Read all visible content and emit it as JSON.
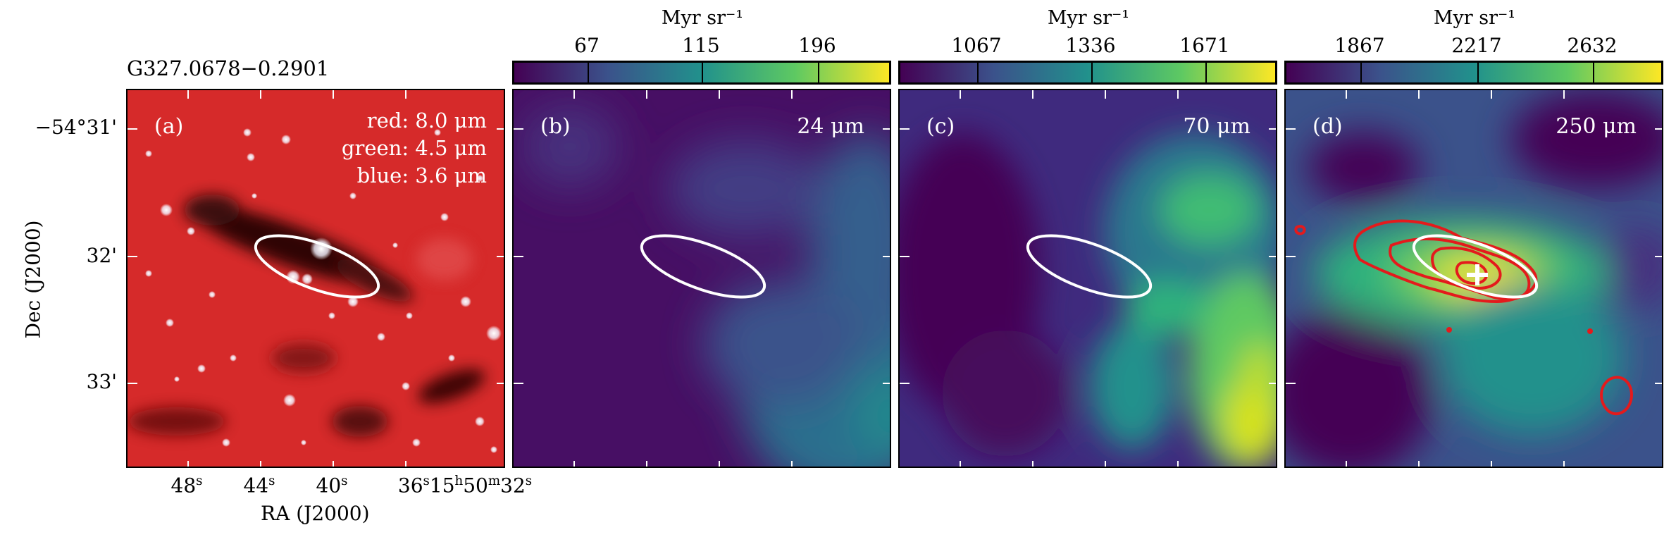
{
  "source_name": "G327.0678−0.2901",
  "axes": {
    "x_title": "RA (J2000)",
    "y_title": "Dec (J2000)",
    "dec_ticks": [
      "−54°31'",
      "32'",
      "33'"
    ],
    "ra_ticks": [
      "48",
      "44",
      "40",
      "36"
    ],
    "ra_tick_unit": "s",
    "ra_last_prefix_h": "15",
    "ra_last_prefix_m": "50",
    "ra_last_sec": "32"
  },
  "panels": [
    {
      "label": "(a)",
      "legend": [
        "red: 8.0 μm",
        "green: 4.5 μm",
        "blue: 3.6 μm"
      ]
    },
    {
      "label": "(b)",
      "band": "24 μm",
      "colorbar": {
        "title": "Myr sr⁻¹",
        "ticks": [
          "67",
          "115",
          "196"
        ]
      }
    },
    {
      "label": "(c)",
      "band": "70 μm",
      "colorbar": {
        "title": "Myr sr⁻¹",
        "ticks": [
          "1067",
          "1336",
          "1671"
        ]
      }
    },
    {
      "label": "(d)",
      "band": "250 μm",
      "colorbar": {
        "title": "Myr sr⁻¹",
        "ticks": [
          "1867",
          "2217",
          "2632"
        ]
      }
    }
  ],
  "colors": {
    "viridis_low": "#440154",
    "viridis_mid": "#21918c",
    "viridis_high": "#fde725",
    "ellipse": "#ffffff",
    "contour": "#e41a1c",
    "rgb_background": "#d62a2a"
  }
}
